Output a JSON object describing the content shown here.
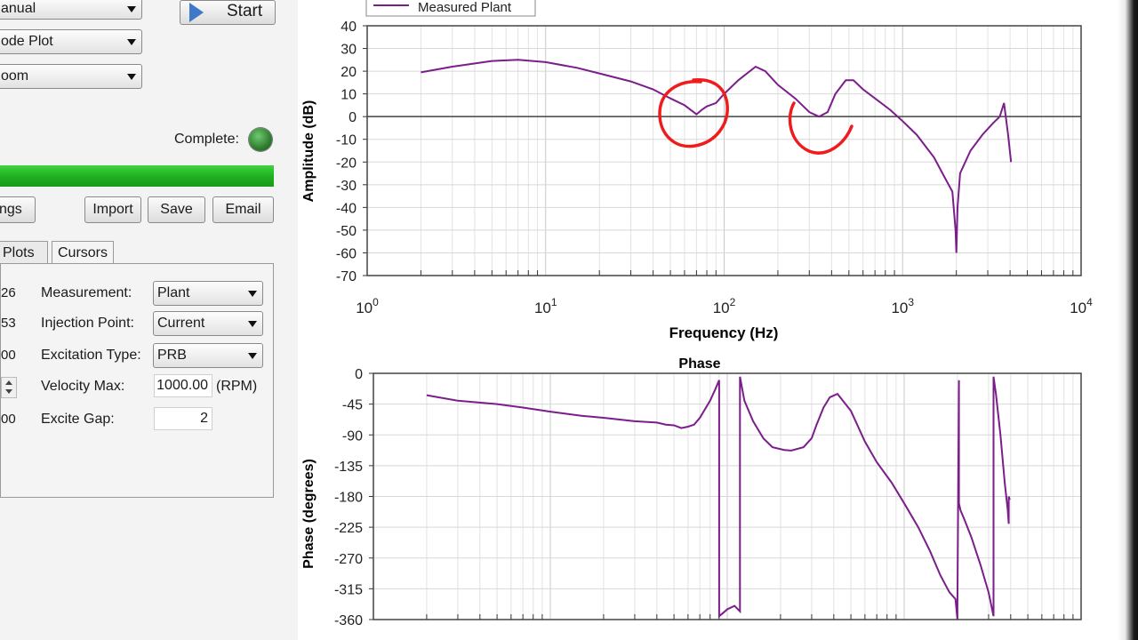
{
  "controls": {
    "mode_value": "anual",
    "plot_type_value": "ode Plot",
    "zoom_value": "oom",
    "start_label": "Start",
    "complete_label": "Complete:",
    "progress_fraction": 1.0,
    "buttons": {
      "settings": "ngs",
      "import": "Import",
      "save": "Save",
      "email": "Email"
    },
    "tabs": {
      "plots": "Plots",
      "cursors": "Cursors"
    },
    "fields": {
      "measurement": {
        "edge": "26",
        "label": "Measurement:",
        "value": "Plant"
      },
      "injection_point": {
        "edge": "53",
        "label": "Injection Point:",
        "value": "Current"
      },
      "excitation_type": {
        "edge": "00",
        "label": "Excitation Type:",
        "value": "PRB"
      },
      "velocity_max": {
        "label": "Velocity Max:",
        "value": "1000.00",
        "unit": "(RPM)"
      },
      "excite_gap": {
        "edge": "00",
        "label": "Excite Gap:",
        "value": "2"
      }
    }
  },
  "chart_data": [
    {
      "type": "line",
      "legend": "Measured Plant",
      "series_color": "#7b1d8a",
      "xlabel": "Frequency (Hz)",
      "ylabel": "Amplitude (dB)",
      "x_scale": "log",
      "xlim": [
        1,
        10000
      ],
      "ylim": [
        -70,
        40
      ],
      "yticks": [
        40,
        30,
        20,
        10,
        0,
        -10,
        -20,
        -30,
        -40,
        -50,
        -60,
        -70
      ],
      "xticks": [
        {
          "base": "10",
          "exp": "0"
        },
        {
          "base": "10",
          "exp": "1"
        },
        {
          "base": "10",
          "exp": "2"
        },
        {
          "base": "10",
          "exp": "3"
        },
        {
          "base": "10",
          "exp": "4"
        }
      ],
      "grid": true,
      "annotations": "two hand-drawn red circles near 70 Hz and 350 Hz",
      "series": [
        {
          "name": "Measured Plant",
          "x": [
            2,
            3,
            5,
            7,
            10,
            15,
            20,
            30,
            40,
            50,
            60,
            70,
            75,
            80,
            90,
            100,
            120,
            150,
            170,
            200,
            250,
            300,
            340,
            380,
            420,
            480,
            530,
            600,
            700,
            850,
            1000,
            1200,
            1500,
            1700,
            1900,
            1980,
            2000,
            2030,
            2100,
            2400,
            2800,
            3200,
            3500,
            3700,
            3900,
            4050
          ],
          "y": [
            19.5,
            22,
            24.5,
            25,
            24,
            21.5,
            19,
            15.5,
            12,
            8,
            5,
            1,
            3,
            4.5,
            6,
            10,
            16,
            22,
            20,
            14,
            8,
            2,
            0,
            2,
            10,
            16,
            16,
            12,
            8,
            3,
            -2,
            -8,
            -18,
            -26,
            -33,
            -50,
            -60,
            -40,
            -25,
            -15,
            -8,
            -3,
            0,
            6,
            -8,
            -20
          ]
        }
      ]
    },
    {
      "type": "line",
      "title": "Phase",
      "series_color": "#7b1d8a",
      "xlabel": "",
      "ylabel": "Phase (degrees)",
      "x_scale": "log",
      "xlim": [
        1,
        10000
      ],
      "ylim": [
        -360,
        0
      ],
      "yticks": [
        0,
        -45,
        -90,
        -135,
        -180,
        -225,
        -270,
        -315,
        -360
      ],
      "grid": true,
      "series": [
        {
          "name": "Measured Plant",
          "x": [
            2,
            3,
            5,
            7,
            10,
            15,
            20,
            30,
            40,
            45,
            50,
            55,
            60,
            65,
            70,
            80,
            85,
            90,
            90,
            95,
            100,
            110,
            118,
            118,
            125,
            140,
            160,
            180,
            210,
            230,
            270,
            300,
            320,
            350,
            380,
            420,
            500,
            600,
            700,
            850,
            1000,
            1200,
            1400,
            1600,
            1800,
            1950,
            2000,
            2000,
            2040,
            2040,
            2080,
            2200,
            2400,
            2700,
            3000,
            3200,
            3200,
            3300,
            3500,
            3700,
            3850,
            3900,
            3900,
            3950
          ],
          "y": [
            -32,
            -40,
            -45,
            -50,
            -56,
            -62,
            -65,
            -70,
            -72,
            -75,
            -76,
            -80,
            -78,
            -75,
            -65,
            -40,
            -25,
            -10,
            -355,
            -350,
            -345,
            -340,
            -348,
            -5,
            -40,
            -70,
            -95,
            -108,
            -112,
            -113,
            -108,
            -95,
            -75,
            -50,
            -35,
            -30,
            -55,
            -100,
            -130,
            -160,
            -190,
            -225,
            -260,
            -295,
            -320,
            -330,
            -360,
            -340,
            -10,
            -190,
            -200,
            -215,
            -240,
            -280,
            -320,
            -355,
            -5,
            -30,
            -90,
            -160,
            -200,
            -220,
            -180,
            -185
          ]
        }
      ]
    }
  ]
}
